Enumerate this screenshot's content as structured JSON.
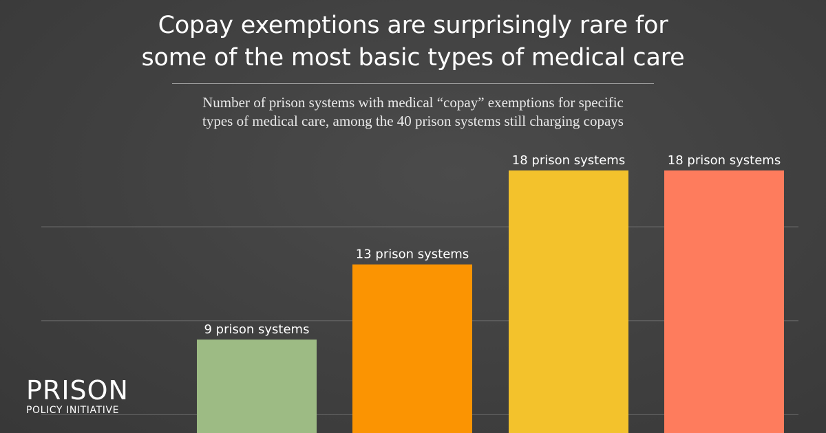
{
  "title_line1": "Copay exemptions are surprisingly rare for",
  "title_line2": "some of the most basic types of medical care",
  "subtitle_line1": "Number of prison systems with medical “copay” exemptions for specific",
  "subtitle_line2": "types of medical care, among the 40 prison systems still charging copays",
  "logo": {
    "word": "PRISON",
    "tagline": "POLICY INITIATIVE"
  },
  "chart_data": {
    "type": "bar",
    "categories": [
      "",
      "",
      "",
      ""
    ],
    "values": [
      9,
      13,
      18,
      18
    ],
    "data_labels": [
      "9 prison systems",
      "13 prison systems",
      "18 prison systems",
      "18 prison systems"
    ],
    "colors": [
      "#9dbb84",
      "#fb9402",
      "#f3c22c",
      "#fe7c5d"
    ],
    "gridline_color": "#6a6a6a",
    "grid": true
  }
}
